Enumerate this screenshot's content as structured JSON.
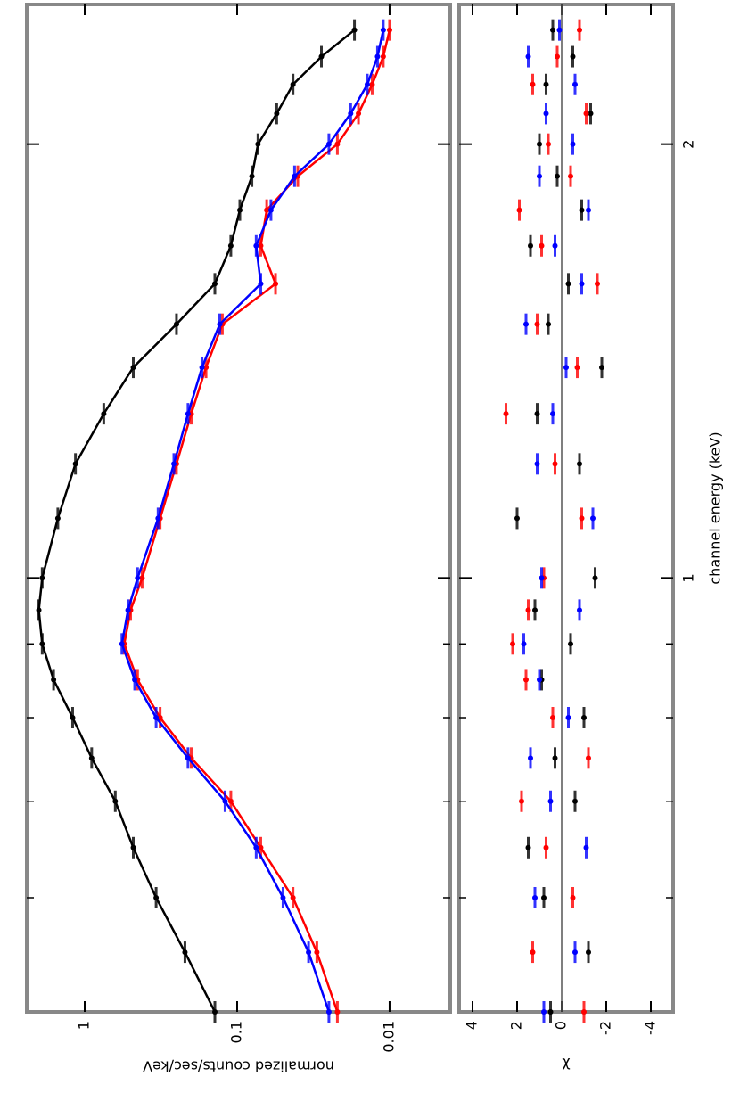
{
  "chart_data": [
    {
      "type": "line",
      "log_x": true,
      "log_y": true,
      "y_label": "normalized counts/sec/keV",
      "x": [
        0.5,
        0.55,
        0.6,
        0.65,
        0.7,
        0.75,
        0.8,
        0.85,
        0.9,
        0.95,
        1.0,
        1.1,
        1.2,
        1.3,
        1.4,
        1.5,
        1.6,
        1.7,
        1.8,
        1.9,
        2.0,
        2.1,
        2.2,
        2.3,
        2.4
      ],
      "xlim": [
        0.5,
        2.5
      ],
      "xticks": [
        1,
        2
      ],
      "xminorticks": [
        0.6,
        0.7,
        0.8,
        0.9
      ],
      "ylim": [
        0.004,
        2.4
      ],
      "yticks": [
        1,
        0.1,
        0.01
      ],
      "series": [
        {
          "color": "#000000",
          "values": [
            0.14,
            0.22,
            0.34,
            0.48,
            0.63,
            0.9,
            1.2,
            1.6,
            1.9,
            2.0,
            1.9,
            1.5,
            1.15,
            0.75,
            0.48,
            0.25,
            0.14,
            0.11,
            0.096,
            0.08,
            0.073,
            0.055,
            0.043,
            0.028,
            0.017
          ]
        },
        {
          "color": "#ff0000",
          "values": [
            0.022,
            0.03,
            0.043,
            0.07,
            0.11,
            0.2,
            0.32,
            0.45,
            0.55,
            0.5,
            0.42,
            0.32,
            0.25,
            0.2,
            0.16,
            0.125,
            0.056,
            0.07,
            0.064,
            0.04,
            0.022,
            0.016,
            0.013,
            0.011,
            0.01
          ]
        },
        {
          "color": "#0000ff",
          "values": [
            0.025,
            0.034,
            0.05,
            0.075,
            0.12,
            0.21,
            0.34,
            0.47,
            0.57,
            0.52,
            0.45,
            0.33,
            0.26,
            0.21,
            0.17,
            0.13,
            0.07,
            0.075,
            0.06,
            0.042,
            0.025,
            0.018,
            0.014,
            0.012,
            0.011
          ]
        }
      ]
    },
    {
      "type": "scatter",
      "log_x": true,
      "x_label": "channel energy (keV)",
      "y_label": "χ",
      "x": [
        0.5,
        0.55,
        0.6,
        0.65,
        0.7,
        0.75,
        0.8,
        0.85,
        0.9,
        0.95,
        1.0,
        1.1,
        1.2,
        1.3,
        1.4,
        1.5,
        1.6,
        1.7,
        1.8,
        1.9,
        2.0,
        2.1,
        2.2,
        2.3,
        2.4
      ],
      "xlim": [
        0.5,
        2.5
      ],
      "xticks": [
        1,
        2
      ],
      "xminorticks": [
        0.6,
        0.7,
        0.8,
        0.9
      ],
      "ylim": [
        -5,
        4.6
      ],
      "yticks": [
        4,
        2,
        0,
        -2,
        -4
      ],
      "series": [
        {
          "color": "#000000",
          "values": [
            0.5,
            -1.2,
            0.8,
            1.5,
            -0.6,
            0.3,
            -1.0,
            0.9,
            -0.4,
            1.2,
            -1.5,
            2.0,
            -0.8,
            1.1,
            -1.8,
            0.6,
            -0.3,
            1.4,
            -0.9,
            0.2,
            1.0,
            -1.3,
            0.7,
            -0.5,
            0.4
          ]
        },
        {
          "color": "#ff0000",
          "values": [
            -1.0,
            1.3,
            -0.5,
            0.7,
            1.8,
            -1.2,
            0.4,
            1.6,
            2.2,
            1.5,
            0.8,
            -0.9,
            0.3,
            2.5,
            -0.7,
            1.1,
            -1.6,
            0.9,
            1.9,
            -0.4,
            0.6,
            -1.1,
            1.3,
            0.2,
            -0.8
          ]
        },
        {
          "color": "#0000ff",
          "values": [
            0.8,
            -0.6,
            1.2,
            -1.1,
            0.5,
            1.4,
            -0.3,
            1.0,
            1.7,
            -0.8,
            0.9,
            -1.4,
            1.1,
            0.4,
            -0.2,
            1.6,
            -0.9,
            0.3,
            -1.2,
            1.0,
            -0.5,
            0.7,
            -0.6,
            1.5,
            0.1
          ]
        }
      ]
    }
  ]
}
